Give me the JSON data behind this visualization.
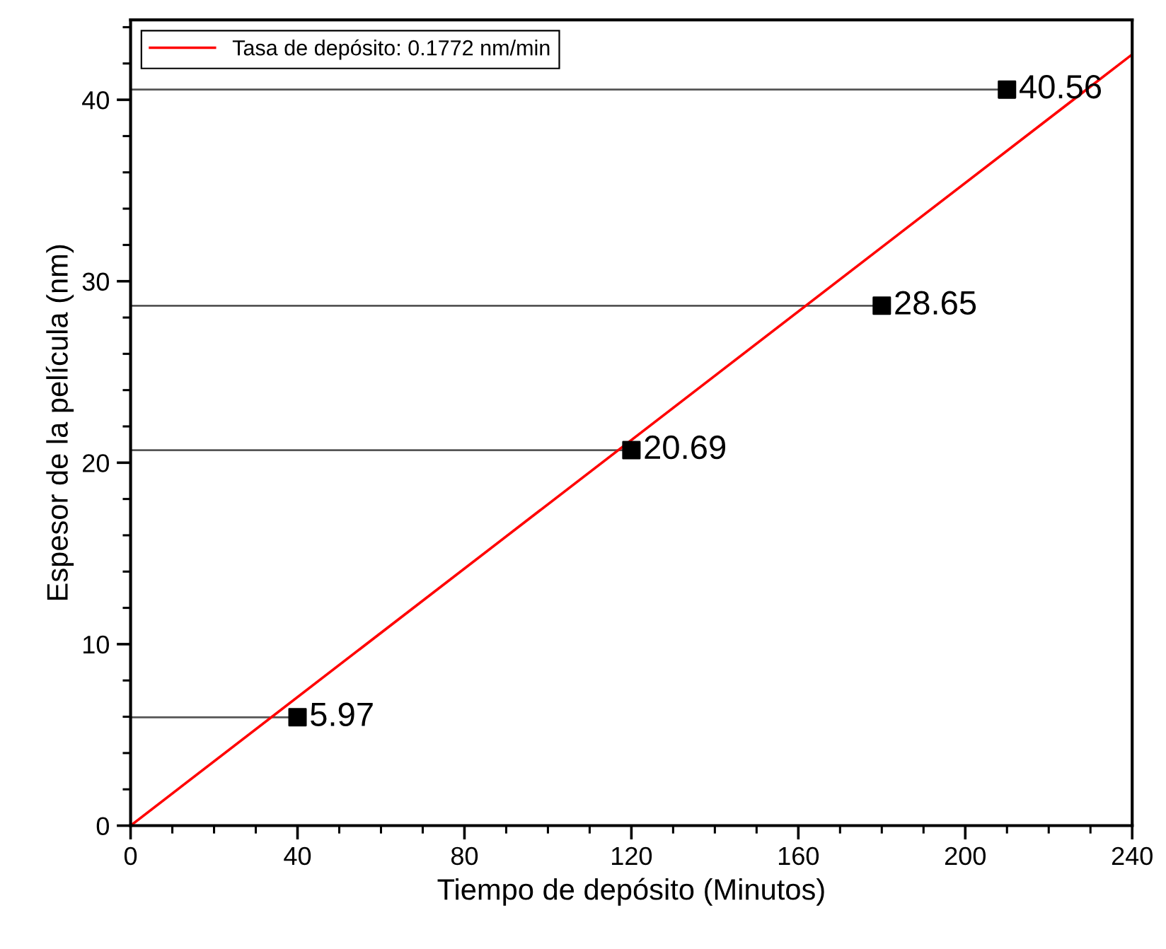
{
  "chart_data": {
    "type": "scatter",
    "xlabel": "Tiempo de depósito (Minutos)",
    "ylabel": "Espesor de la película (nm)",
    "xlim": [
      0,
      240
    ],
    "xticks": [
      0,
      40,
      80,
      120,
      160,
      200,
      240
    ],
    "ylim": [
      0,
      44.4
    ],
    "yticks": [
      0,
      10,
      20,
      30,
      40
    ],
    "grid": false,
    "legend": "top left",
    "series": [
      {
        "marker": "square",
        "color": "#000000",
        "x": [
          40,
          120,
          180,
          210
        ],
        "values": [
          5.97,
          20.69,
          28.65,
          40.56
        ],
        "value_labels": [
          "5.97",
          "20.69",
          "28.65",
          "40.56"
        ],
        "xerrors": [
          [
            0,
            40
          ],
          [
            0,
            120
          ],
          [
            0,
            180
          ],
          [
            0,
            210
          ]
        ]
      },
      {
        "type": "line",
        "name": "Tasa de depósito: 0.1772 nm/min",
        "color": "#ff0000",
        "line_style": "solid",
        "marker": "none",
        "x": [
          0,
          240
        ],
        "values": [
          0,
          42.5
        ]
      }
    ]
  }
}
